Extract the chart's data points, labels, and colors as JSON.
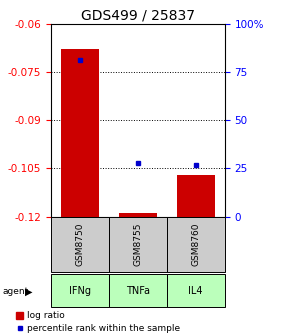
{
  "title": "GDS499 / 25837",
  "samples": [
    "GSM8750",
    "GSM8755",
    "GSM8760"
  ],
  "agents": [
    "IFNg",
    "TNFa",
    "IL4"
  ],
  "log_ratios": [
    -0.068,
    -0.119,
    -0.107
  ],
  "percentile_ranks": [
    81,
    28,
    27
  ],
  "ylim_left": [
    -0.12,
    -0.06
  ],
  "ylim_right": [
    0,
    100
  ],
  "yticks_left": [
    -0.12,
    -0.105,
    -0.09,
    -0.075,
    -0.06
  ],
  "yticks_right": [
    0,
    25,
    50,
    75,
    100
  ],
  "bar_color": "#cc0000",
  "dot_color": "#0000cc",
  "agent_color": "#bbffbb",
  "sample_box_color": "#cccccc",
  "background_color": "#ffffff",
  "title_fontsize": 10,
  "tick_fontsize": 7.5,
  "legend_fontsize": 6.5
}
